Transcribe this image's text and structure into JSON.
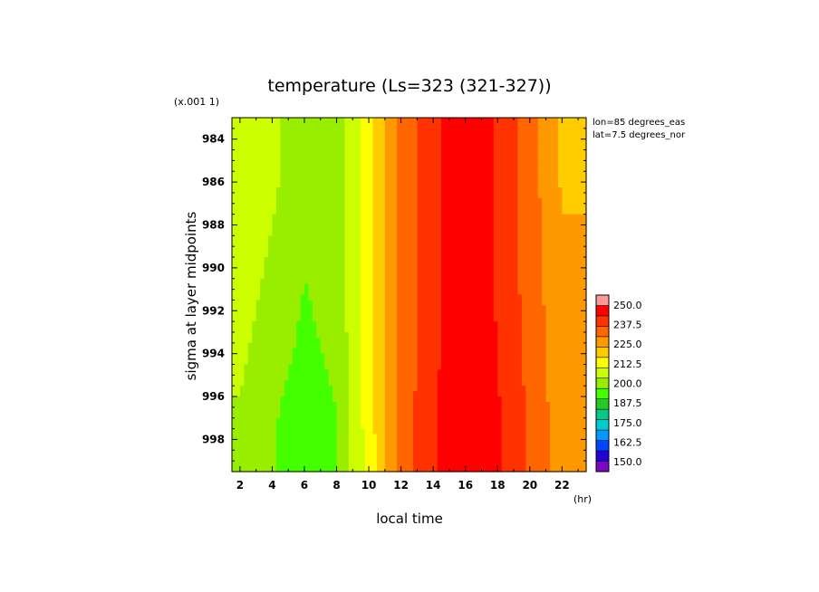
{
  "chart_data": {
    "type": "heatmap",
    "title": "temperature (Ls=323 (321-327))",
    "xlabel": "local time",
    "ylabel": "sigma at layer midpoints",
    "x_unit": "(hr)",
    "y_scale_note": "(x.001 1)",
    "annotations": [
      "lon=85 degrees_eas",
      "lat=7.5 degrees_nor"
    ],
    "xlim": [
      1.5,
      23.5
    ],
    "ylim": [
      983,
      999.5
    ],
    "x_ticks": [
      "2",
      "4",
      "6",
      "8",
      "10",
      "12",
      "14",
      "16",
      "18",
      "20",
      "22"
    ],
    "y_ticks": [
      "984",
      "986",
      "988",
      "990",
      "992",
      "994",
      "996",
      "998"
    ],
    "x_tick_values": [
      2,
      4,
      6,
      8,
      10,
      12,
      14,
      16,
      18,
      20,
      22
    ],
    "y_tick_values": [
      984,
      986,
      988,
      990,
      992,
      994,
      996,
      998
    ],
    "colorbar": {
      "min": 143.75,
      "max": 250,
      "step": 6.25,
      "labels": [
        "250.0",
        "237.5",
        "225.0",
        "212.5",
        "200.0",
        "187.5",
        "175.0",
        "162.5",
        "150.0"
      ],
      "label_values": [
        250,
        237.5,
        225,
        212.5,
        200,
        187.5,
        175,
        162.5,
        150
      ],
      "colors": [
        "#7a0ac0",
        "#2200d8",
        "#0044ff",
        "#0099ff",
        "#00cccc",
        "#00cc88",
        "#22cc22",
        "#44ff00",
        "#99ee00",
        "#ccff00",
        "#ffff00",
        "#ffcc00",
        "#ff9900",
        "#ff6600",
        "#ff3300",
        "#ff0000",
        "#ff9999"
      ]
    },
    "x": [
      2,
      4,
      6,
      8,
      10,
      12,
      14,
      16,
      18,
      20,
      22
    ],
    "y": [
      984,
      986,
      988,
      990,
      992,
      994,
      996,
      998
    ],
    "values": [
      [
        205,
        201,
        196,
        196,
        210,
        226,
        236,
        242,
        237,
        228,
        218
      ],
      [
        205,
        201,
        196,
        196,
        210,
        226,
        236,
        242,
        237,
        228,
        218
      ],
      [
        204,
        200,
        195,
        196,
        210,
        226,
        236,
        242,
        237,
        228,
        219
      ],
      [
        203,
        199,
        194,
        196,
        210,
        226,
        236,
        242,
        237,
        228,
        219
      ],
      [
        202,
        198,
        193,
        196,
        210,
        226,
        236,
        242,
        237,
        229,
        220
      ],
      [
        201,
        197,
        192,
        195,
        210,
        226,
        236,
        242,
        238,
        229,
        221
      ],
      [
        200,
        195,
        191,
        194,
        210,
        227,
        237,
        243,
        238,
        230,
        221
      ],
      [
        199,
        194,
        190,
        193,
        209,
        227,
        237,
        243,
        238,
        230,
        222
      ]
    ]
  }
}
